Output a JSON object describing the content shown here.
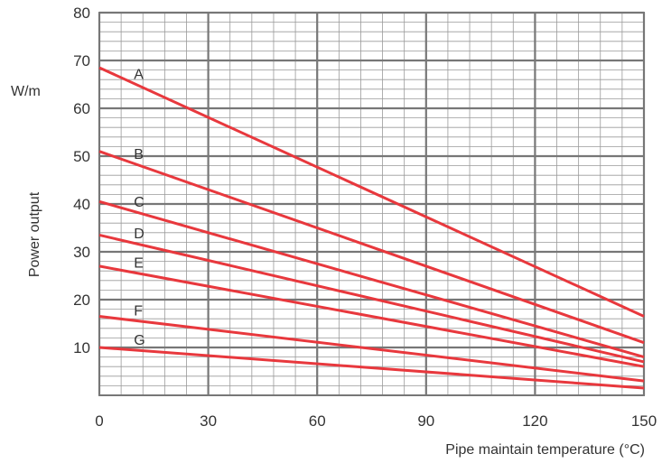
{
  "chart_data": {
    "type": "line",
    "title": "",
    "xlabel": "Pipe maintain temperature (°C)",
    "ylabel": "Power output",
    "yunit": "W/m",
    "xlim": [
      0,
      150
    ],
    "ylim": [
      0,
      80
    ],
    "xticks": [
      0,
      30,
      60,
      90,
      120,
      150
    ],
    "yticks": [
      10,
      20,
      30,
      40,
      50,
      60,
      70,
      80
    ],
    "grid": true,
    "colors": {
      "line": "#e8383d",
      "grid": "#777777",
      "minor_grid": "#9a9a9a",
      "text": "#333333"
    },
    "series": [
      {
        "name": "A",
        "x": [
          0,
          150
        ],
        "y": [
          68.5,
          16.5
        ]
      },
      {
        "name": "B",
        "x": [
          0,
          150
        ],
        "y": [
          51,
          11
        ]
      },
      {
        "name": "C",
        "x": [
          0,
          150
        ],
        "y": [
          40.5,
          8
        ]
      },
      {
        "name": "D",
        "x": [
          0,
          150
        ],
        "y": [
          33.5,
          7
        ]
      },
      {
        "name": "E",
        "x": [
          0,
          150
        ],
        "y": [
          27,
          6
        ]
      },
      {
        "name": "F",
        "x": [
          0,
          150
        ],
        "y": [
          16.5,
          3
        ]
      },
      {
        "name": "G",
        "x": [
          0,
          150
        ],
        "y": [
          10,
          1.5
        ]
      }
    ]
  }
}
